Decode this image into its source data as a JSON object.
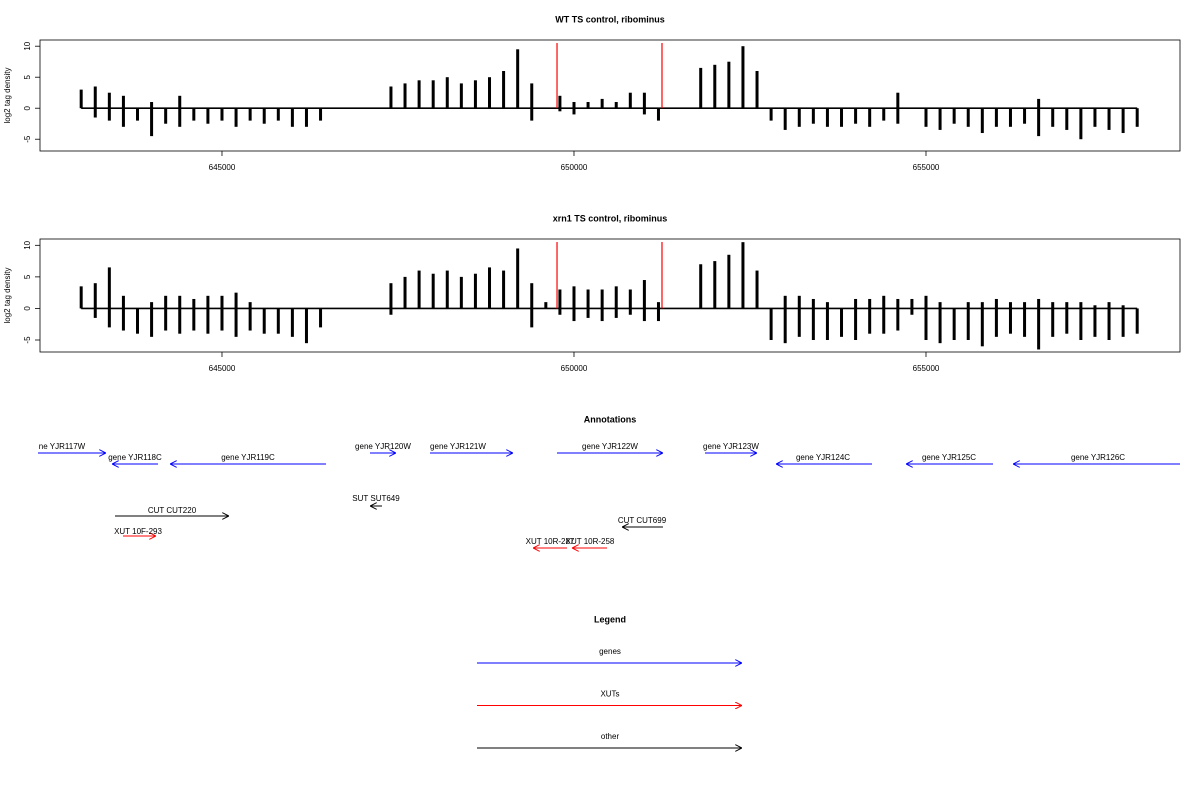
{
  "chart_data": [
    {
      "type": "bar",
      "title": "WT TS control, ribominus",
      "ylabel": "log2 tag density",
      "xlim": [
        642415,
        658608
      ],
      "xticks": [
        645000,
        650000,
        655000
      ],
      "ylim": [
        -6.9,
        11
      ],
      "yticks": [
        -5,
        0,
        5,
        10
      ],
      "x": [
        643000,
        643200,
        643400,
        643600,
        643800,
        644000,
        644200,
        644400,
        644600,
        644800,
        645000,
        645200,
        645400,
        645600,
        645800,
        646000,
        646200,
        646400,
        646600,
        646800,
        647000,
        647200,
        647400,
        647600,
        647800,
        648000,
        648200,
        648400,
        648600,
        648800,
        649000,
        649200,
        649400,
        649600,
        649800,
        650000,
        650200,
        650400,
        650600,
        650800,
        651000,
        651200,
        651400,
        651600,
        651800,
        652000,
        652200,
        652400,
        652600,
        652800,
        653000,
        653200,
        653400,
        653600,
        653800,
        654000,
        654200,
        654400,
        654600,
        654800,
        655000,
        655200,
        655400,
        655600,
        655800,
        656000,
        656200,
        656400,
        656600,
        656800,
        657000,
        657200,
        657400,
        657600,
        657800,
        658000
      ],
      "color": "#000000",
      "marker_lines": [
        649759,
        651250
      ],
      "marker_color": "#ff0000",
      "series": [
        {
          "values": [
            3,
            3.5,
            2.5,
            2,
            0,
            1,
            0,
            2,
            0,
            0,
            0,
            0,
            0,
            0,
            0,
            0,
            0,
            0,
            0,
            0,
            0,
            0,
            3.5,
            4,
            4.5,
            4.5,
            5,
            4,
            4.5,
            5,
            6,
            9.5,
            4,
            0,
            2,
            1,
            1,
            1.5,
            1,
            2.5,
            2.5,
            0,
            0,
            0,
            6.5,
            7,
            7.5,
            10,
            6,
            0,
            0,
            0,
            0,
            0,
            0,
            0,
            0,
            0,
            2.5,
            0,
            0,
            0,
            0,
            0,
            0,
            0,
            0,
            0,
            1.5,
            0,
            0,
            0,
            0,
            0,
            0,
            0
          ]
        },
        {
          "values": [
            0,
            -1.5,
            -2,
            -3,
            -2,
            -4.5,
            -2.5,
            -3,
            -2,
            -2.5,
            -2,
            -3,
            -2,
            -2.5,
            -2,
            -3,
            -3,
            -2,
            0,
            0,
            0,
            0,
            0,
            0,
            0,
            0,
            0,
            0,
            0,
            0,
            0,
            0,
            -2,
            0,
            -0.5,
            -1,
            0,
            0,
            0,
            0,
            -1,
            -2,
            0,
            0,
            0,
            0,
            0,
            0,
            0,
            -2,
            -3.5,
            -3,
            -2.5,
            -3,
            -3,
            -2.5,
            -3,
            -2,
            -2.5,
            0,
            -3,
            -3.5,
            -2.5,
            -3,
            -4,
            -3,
            -3,
            -2.5,
            -4.5,
            -3,
            -3.5,
            -5,
            -3,
            -3.5,
            -4,
            -3
          ]
        }
      ]
    },
    {
      "type": "bar",
      "title": "xrn1 TS control, ribominus",
      "ylabel": "log2 tag density",
      "xlim": [
        642415,
        658608
      ],
      "xticks": [
        645000,
        650000,
        655000
      ],
      "ylim": [
        -6.9,
        11
      ],
      "yticks": [
        -5,
        0,
        5,
        10
      ],
      "x": [
        643000,
        643200,
        643400,
        643600,
        643800,
        644000,
        644200,
        644400,
        644600,
        644800,
        645000,
        645200,
        645400,
        645600,
        645800,
        646000,
        646200,
        646400,
        646600,
        646800,
        647000,
        647200,
        647400,
        647600,
        647800,
        648000,
        648200,
        648400,
        648600,
        648800,
        649000,
        649200,
        649400,
        649600,
        649800,
        650000,
        650200,
        650400,
        650600,
        650800,
        651000,
        651200,
        651400,
        651600,
        651800,
        652000,
        652200,
        652400,
        652600,
        652800,
        653000,
        653200,
        653400,
        653600,
        653800,
        654000,
        654200,
        654400,
        654600,
        654800,
        655000,
        655200,
        655400,
        655600,
        655800,
        656000,
        656200,
        656400,
        656600,
        656800,
        657000,
        657200,
        657400,
        657600,
        657800,
        658000
      ],
      "color": "#000000",
      "marker_lines": [
        649759,
        651250
      ],
      "marker_color": "#ff0000",
      "series": [
        {
          "values": [
            3.5,
            4,
            6.5,
            2,
            0,
            1,
            2,
            2,
            1.5,
            2,
            2,
            2.5,
            1,
            0,
            0,
            0,
            0,
            0,
            0,
            0,
            0,
            0,
            4,
            5,
            6,
            5.5,
            6,
            5,
            5.5,
            6.5,
            6,
            9.5,
            4,
            1,
            3,
            3.5,
            3,
            3,
            3.5,
            3,
            4.5,
            1,
            0,
            0,
            7,
            7.5,
            8.5,
            10.5,
            6,
            0,
            2,
            2,
            1.5,
            1,
            0,
            1.5,
            1.5,
            2,
            1.5,
            1.5,
            2,
            1,
            0,
            1,
            1,
            1.5,
            1,
            1,
            1.5,
            1,
            1,
            1,
            0.5,
            1,
            0.5,
            0
          ]
        },
        {
          "values": [
            0,
            -1.5,
            -3,
            -3.5,
            -4,
            -4.5,
            -3.5,
            -4,
            -3.5,
            -4,
            -3.5,
            -4.5,
            -3.5,
            -4,
            -4,
            -4.5,
            -5.5,
            -3,
            0,
            0,
            0,
            0,
            -1,
            0,
            0,
            0,
            0,
            0,
            0,
            0,
            0,
            0,
            -3,
            0,
            -1,
            -2,
            -1.5,
            -2,
            -1.5,
            -1,
            -2,
            -2,
            0,
            0,
            0,
            0,
            0,
            0,
            0,
            -5,
            -5.5,
            -4.5,
            -5,
            -5,
            -4.5,
            -5,
            -4,
            -4,
            -3.5,
            -1,
            -5,
            -5.5,
            -5,
            -5,
            -6,
            -4.5,
            -4,
            -4.5,
            -6.5,
            -4.5,
            -4,
            -5,
            -4.5,
            -5,
            -4.5,
            -4
          ]
        }
      ]
    }
  ],
  "annotations": {
    "title": "Annotations",
    "features": [
      {
        "label": "ne YJR117W",
        "color": "#0000ff"
      },
      {
        "label": "gene YJR118C",
        "color": "#0000ff"
      },
      {
        "label": "gene YJR119C",
        "color": "#0000ff"
      },
      {
        "label": "gene YJR120W",
        "color": "#0000ff"
      },
      {
        "label": "gene YJR121W",
        "color": "#0000ff"
      },
      {
        "label": "gene YJR122W",
        "color": "#0000ff"
      },
      {
        "label": "gene YJR123W",
        "color": "#0000ff"
      },
      {
        "label": "gene YJR124C",
        "color": "#0000ff"
      },
      {
        "label": "gene YJR125C",
        "color": "#0000ff"
      },
      {
        "label": "gene YJR126C",
        "color": "#0000ff"
      },
      {
        "label": "SUT SUT649",
        "color": "#000000"
      },
      {
        "label": "CUT CUT220",
        "color": "#000000"
      },
      {
        "label": "XUT 10F-293",
        "color": "#ff0000"
      },
      {
        "label": "CUT CUT699",
        "color": "#000000"
      },
      {
        "label": "XUT 10R-287",
        "color": "#ff0000"
      },
      {
        "label": "XUT 10R-258",
        "color": "#ff0000"
      }
    ]
  },
  "legend": {
    "title": "Legend",
    "items": [
      {
        "label": "genes",
        "color": "#0000ff"
      },
      {
        "label": "XUTs",
        "color": "#ff0000"
      },
      {
        "label": "other",
        "color": "#000000"
      }
    ]
  }
}
